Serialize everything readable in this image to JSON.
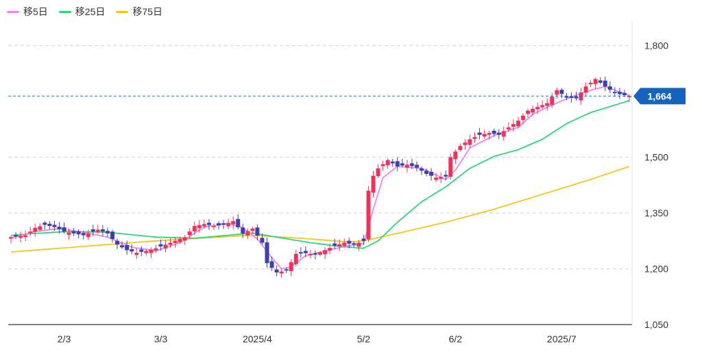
{
  "chart_data": {
    "type": "candlestick",
    "legend": [
      {
        "name": "移5日",
        "color": "#ee82ee"
      },
      {
        "name": "移25日",
        "color": "#2ed47a"
      },
      {
        "name": "移75日",
        "color": "#f5c518"
      }
    ],
    "y_axis": {
      "min": 1050,
      "max": 1820,
      "position": "right",
      "ticks": [
        {
          "value": 1800,
          "label": "1,800"
        },
        {
          "value": 1500,
          "label": "1,500"
        },
        {
          "value": 1350,
          "label": "1,350"
        },
        {
          "value": 1200,
          "label": "1,200"
        },
        {
          "value": 1050,
          "label": "1,050"
        }
      ]
    },
    "x_ticks": [
      {
        "label": "2/3",
        "index": 11
      },
      {
        "label": "3/3",
        "index": 31
      },
      {
        "label": "2025/4",
        "index": 51
      },
      {
        "label": "5/2",
        "index": 73
      },
      {
        "label": "6/2",
        "index": 92
      },
      {
        "label": "2025/7",
        "index": 114
      }
    ],
    "n_points": 129,
    "current_price": {
      "value": 1664,
      "label": "1,664",
      "color": "#1565c0"
    },
    "colors": {
      "up": "#f0325a",
      "down": "#3f3fb0",
      "grid": "#d8d8d8",
      "axis": "#555555"
    },
    "grid": true,
    "close_anchors": [
      [
        0,
        1285
      ],
      [
        3,
        1290
      ],
      [
        5,
        1310
      ],
      [
        7,
        1318
      ],
      [
        9,
        1312
      ],
      [
        11,
        1300
      ],
      [
        13,
        1295
      ],
      [
        15,
        1290
      ],
      [
        18,
        1305
      ],
      [
        20,
        1295
      ],
      [
        22,
        1265
      ],
      [
        24,
        1250
      ],
      [
        26,
        1243
      ],
      [
        28,
        1248
      ],
      [
        30,
        1255
      ],
      [
        32,
        1265
      ],
      [
        34,
        1275
      ],
      [
        36,
        1285
      ],
      [
        38,
        1315
      ],
      [
        40,
        1320
      ],
      [
        42,
        1315
      ],
      [
        44,
        1318
      ],
      [
        46,
        1328
      ],
      [
        48,
        1295
      ],
      [
        50,
        1308
      ],
      [
        52,
        1270
      ],
      [
        53,
        1215
      ],
      [
        55,
        1190
      ],
      [
        57,
        1195
      ],
      [
        59,
        1240
      ],
      [
        61,
        1242
      ],
      [
        63,
        1238
      ],
      [
        65,
        1250
      ],
      [
        67,
        1262
      ],
      [
        69,
        1270
      ],
      [
        71,
        1265
      ],
      [
        73,
        1275
      ],
      [
        74,
        1410
      ],
      [
        75,
        1450
      ],
      [
        76,
        1470
      ],
      [
        78,
        1492
      ],
      [
        80,
        1475
      ],
      [
        82,
        1480
      ],
      [
        84,
        1472
      ],
      [
        86,
        1455
      ],
      [
        88,
        1445
      ],
      [
        90,
        1448
      ],
      [
        91,
        1500
      ],
      [
        93,
        1530
      ],
      [
        95,
        1548
      ],
      [
        97,
        1560
      ],
      [
        99,
        1565
      ],
      [
        101,
        1560
      ],
      [
        103,
        1580
      ],
      [
        105,
        1598
      ],
      [
        107,
        1625
      ],
      [
        109,
        1635
      ],
      [
        111,
        1645
      ],
      [
        113,
        1680
      ],
      [
        115,
        1660
      ],
      [
        117,
        1658
      ],
      [
        119,
        1690
      ],
      [
        121,
        1710
      ],
      [
        123,
        1690
      ],
      [
        125,
        1672
      ],
      [
        128,
        1664
      ]
    ],
    "ma5_anchors": [
      [
        0,
        1283
      ],
      [
        5,
        1300
      ],
      [
        10,
        1308
      ],
      [
        15,
        1298
      ],
      [
        20,
        1285
      ],
      [
        25,
        1258
      ],
      [
        30,
        1248
      ],
      [
        35,
        1270
      ],
      [
        40,
        1312
      ],
      [
        45,
        1322
      ],
      [
        48,
        1310
      ],
      [
        51,
        1280
      ],
      [
        54,
        1230
      ],
      [
        56,
        1200
      ],
      [
        58,
        1205
      ],
      [
        61,
        1235
      ],
      [
        65,
        1248
      ],
      [
        70,
        1262
      ],
      [
        73,
        1268
      ],
      [
        75,
        1360
      ],
      [
        77,
        1445
      ],
      [
        80,
        1475
      ],
      [
        85,
        1470
      ],
      [
        90,
        1440
      ],
      [
        92,
        1465
      ],
      [
        95,
        1525
      ],
      [
        100,
        1558
      ],
      [
        105,
        1580
      ],
      [
        108,
        1615
      ],
      [
        112,
        1640
      ],
      [
        116,
        1662
      ],
      [
        120,
        1680
      ],
      [
        123,
        1690
      ],
      [
        126,
        1675
      ],
      [
        128,
        1666
      ]
    ],
    "ma25_anchors": [
      [
        0,
        1290
      ],
      [
        5,
        1295
      ],
      [
        12,
        1300
      ],
      [
        20,
        1298
      ],
      [
        30,
        1285
      ],
      [
        38,
        1282
      ],
      [
        45,
        1290
      ],
      [
        50,
        1296
      ],
      [
        55,
        1285
      ],
      [
        62,
        1270
      ],
      [
        68,
        1260
      ],
      [
        73,
        1255
      ],
      [
        76,
        1275
      ],
      [
        80,
        1325
      ],
      [
        85,
        1380
      ],
      [
        90,
        1420
      ],
      [
        95,
        1470
      ],
      [
        100,
        1502
      ],
      [
        105,
        1520
      ],
      [
        110,
        1548
      ],
      [
        115,
        1590
      ],
      [
        120,
        1620
      ],
      [
        125,
        1640
      ],
      [
        128,
        1652
      ]
    ],
    "ma75_anchors": [
      [
        0,
        1245
      ],
      [
        10,
        1255
      ],
      [
        20,
        1265
      ],
      [
        30,
        1275
      ],
      [
        40,
        1283
      ],
      [
        50,
        1290
      ],
      [
        60,
        1282
      ],
      [
        70,
        1272
      ],
      [
        73,
        1275
      ],
      [
        80,
        1295
      ],
      [
        90,
        1325
      ],
      [
        100,
        1360
      ],
      [
        110,
        1400
      ],
      [
        120,
        1440
      ],
      [
        128,
        1475
      ]
    ]
  }
}
